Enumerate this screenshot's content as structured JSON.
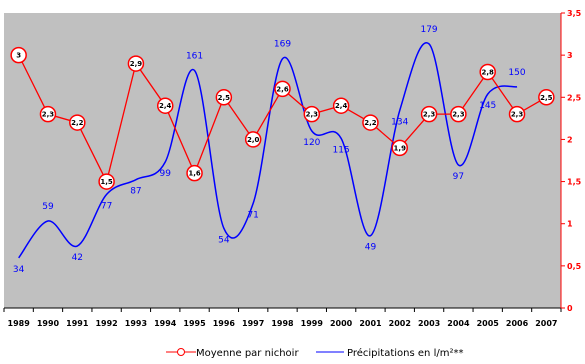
{
  "chart_data": {
    "type": "line",
    "x": [
      "1989",
      "1990",
      "1991",
      "1992",
      "1993",
      "1994",
      "1995",
      "1996",
      "1997",
      "1998",
      "1999",
      "2000",
      "2001",
      "2002",
      "2003",
      "2004",
      "2005",
      "2006",
      "2007"
    ],
    "series": [
      {
        "name": "Moyenne par nichoir",
        "axis": "right",
        "color": "#ff0000",
        "marker": "circle",
        "values": [
          3,
          2.3,
          2.2,
          1.5,
          2.9,
          2.4,
          1.6,
          2.5,
          2.0,
          2.6,
          2.3,
          2.4,
          2.2,
          1.9,
          2.3,
          2.3,
          2.8,
          2.3,
          2.5
        ],
        "labels": [
          "3",
          "2,3",
          "2,2",
          "1,5",
          "2,9",
          "2,4",
          "1,6",
          "2,5",
          "2,0",
          "2,6",
          "2,3",
          "2,4",
          "2,2",
          "1,9",
          "2,3",
          "2,3",
          "2,8",
          "2,3",
          "2,5"
        ]
      },
      {
        "name": "Précipitations en l/m²**",
        "axis": "left",
        "color": "#0000ff",
        "smooth": true,
        "values": [
          34,
          59,
          42,
          77,
          87,
          99,
          161,
          54,
          71,
          169,
          120,
          115,
          49,
          134,
          179,
          97,
          145,
          150,
          null
        ],
        "labels": [
          "34",
          "59",
          "42",
          "77",
          "87",
          "99",
          "161",
          "54",
          "71",
          "169",
          "120",
          "115",
          "49",
          "134",
          "179",
          "97",
          "145",
          "150",
          ""
        ]
      }
    ],
    "y_right": {
      "ylim": [
        0,
        3.5
      ],
      "ticks": [
        "0",
        "0,5",
        "1",
        "1,5",
        "2",
        "2,5",
        "3",
        "3,5"
      ]
    },
    "y_left": {
      "ylim": [
        0,
        200
      ],
      "tick_labels_shown": false
    },
    "grid": false,
    "plot_background": "#c0c0c0",
    "legend_position": "bottom"
  },
  "legend": {
    "red_label": "Moyenne par nichoir",
    "blue_label": "Précipitations en l/m²**"
  }
}
